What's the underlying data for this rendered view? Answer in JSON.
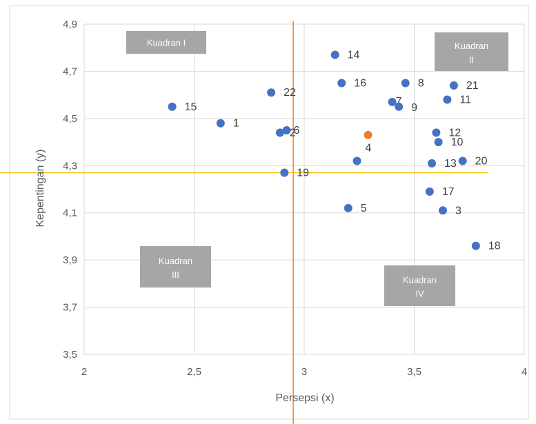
{
  "chart_data": {
    "type": "scatter",
    "xlabel": "Persepsi (x)",
    "ylabel": "Kepentingan (y)",
    "xlim": [
      2,
      4
    ],
    "ylim": [
      3.5,
      4.9
    ],
    "x_ticks": [
      "2",
      "2,5",
      "3",
      "3,5",
      "4"
    ],
    "y_ticks": [
      "3,5",
      "3,7",
      "3,9",
      "4,1",
      "4,3",
      "4,5",
      "4,7",
      "4,9"
    ],
    "grid": true,
    "colors": {
      "points": "#4472C4",
      "mean_point": "#ED7D31",
      "x_mean_line": "#ED7D31",
      "y_mean_line": "#FFC000",
      "quadrant_box": "#A6A6A6"
    },
    "points": [
      {
        "label": "1",
        "x": 2.62,
        "y": 4.48
      },
      {
        "label": "15",
        "x": 2.4,
        "y": 4.55
      },
      {
        "label": "22",
        "x": 2.85,
        "y": 4.61
      },
      {
        "label": "2",
        "x": 2.89,
        "y": 4.44
      },
      {
        "label": "6",
        "x": 2.92,
        "y": 4.45
      },
      {
        "label": "19",
        "x": 2.91,
        "y": 4.27
      },
      {
        "label": "14",
        "x": 3.14,
        "y": 4.77
      },
      {
        "label": "16",
        "x": 3.17,
        "y": 4.65
      },
      {
        "label": "4",
        "x": 3.24,
        "y": 4.32
      },
      {
        "label": "5",
        "x": 3.2,
        "y": 4.12
      },
      {
        "label": "7",
        "x": 3.4,
        "y": 4.57
      },
      {
        "label": "9",
        "x": 3.43,
        "y": 4.55
      },
      {
        "label": "8",
        "x": 3.46,
        "y": 4.65
      },
      {
        "label": "21",
        "x": 3.68,
        "y": 4.64
      },
      {
        "label": "11",
        "x": 3.65,
        "y": 4.58
      },
      {
        "label": "12",
        "x": 3.6,
        "y": 4.44
      },
      {
        "label": "10",
        "x": 3.61,
        "y": 4.4
      },
      {
        "label": "13",
        "x": 3.58,
        "y": 4.31
      },
      {
        "label": "20",
        "x": 3.72,
        "y": 4.32
      },
      {
        "label": "17",
        "x": 3.57,
        "y": 4.19
      },
      {
        "label": "3",
        "x": 3.63,
        "y": 4.11
      },
      {
        "label": "18",
        "x": 3.78,
        "y": 3.96
      }
    ],
    "mean_point": {
      "x": 3.29,
      "y": 4.43
    },
    "x_mean": 2.95,
    "y_mean": 4.27,
    "quadrants": [
      {
        "title": "Kuadran I",
        "line2": ""
      },
      {
        "title": "Kuadran",
        "line2": "II"
      },
      {
        "title": "Kuadran",
        "line2": "III"
      },
      {
        "title": "Kuadran",
        "line2": "IV"
      }
    ]
  }
}
